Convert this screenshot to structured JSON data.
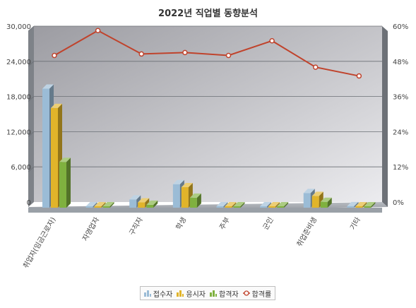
{
  "chart_data": {
    "type": "bar",
    "title": "2022년 직업별 동향분석",
    "categories": [
      "취업자(임금근로자)",
      "자영업자",
      "구직자",
      "학생",
      "주부",
      "군인",
      "취업준비생",
      "기타"
    ],
    "series": [
      {
        "name": "접수자",
        "kind": "bar",
        "axis": "left",
        "color": "#9bbcd6",
        "values": [
          20300,
          0,
          1400,
          4000,
          0,
          200,
          2500,
          250
        ]
      },
      {
        "name": "응시자",
        "kind": "bar",
        "axis": "left",
        "color": "#e1b42a",
        "values": [
          17000,
          0,
          900,
          3500,
          0,
          150,
          2000,
          200
        ]
      },
      {
        "name": "합격자",
        "kind": "bar",
        "axis": "left",
        "color": "#7fb13f",
        "values": [
          7800,
          0,
          500,
          1700,
          0,
          90,
          1000,
          100
        ]
      },
      {
        "name": "합격률",
        "kind": "line",
        "axis": "right",
        "color": "#c0432c",
        "values": [
          50,
          58.5,
          50.5,
          51,
          50,
          55,
          46,
          43
        ]
      }
    ],
    "y_left": {
      "min": 0,
      "max": 30000,
      "ticks": [
        "0",
        "6,000",
        "12,000",
        "18,000",
        "24,000",
        "30,000"
      ]
    },
    "y_right": {
      "min": 0,
      "max": 60,
      "ticks": [
        "0%",
        "12%",
        "24%",
        "36%",
        "48%",
        "60%"
      ]
    },
    "grid": true,
    "legend_position": "bottom"
  }
}
